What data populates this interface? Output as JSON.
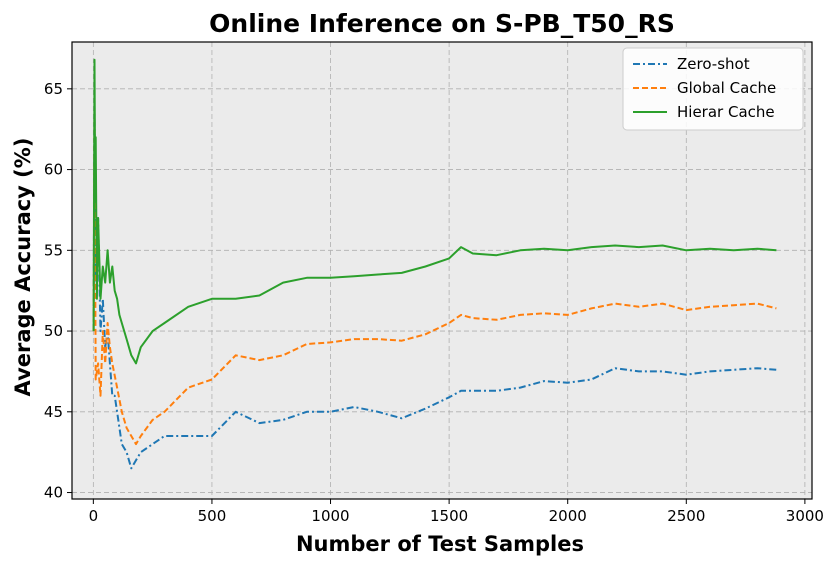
{
  "chart_data": {
    "type": "line",
    "title": "Online Inference on S-PB_T50_RS",
    "xlabel": "Number of Test Samples",
    "ylabel": "Average Accuracy (%)",
    "xlim": [
      -90,
      3030
    ],
    "ylim": [
      39.6,
      67.9
    ],
    "xticks": [
      0,
      500,
      1000,
      1500,
      2000,
      2500,
      3000
    ],
    "yticks": [
      40,
      45,
      50,
      55,
      60,
      65
    ],
    "grid": true,
    "legend": "top-right",
    "background": "#ebebeb",
    "series": [
      {
        "name": "Zero-shot",
        "color": "#1f77b4",
        "linestyle": "dashdot",
        "points": [
          [
            1,
            50
          ],
          [
            5,
            64
          ],
          [
            10,
            53
          ],
          [
            20,
            57
          ],
          [
            30,
            50
          ],
          [
            40,
            52
          ],
          [
            50,
            49
          ],
          [
            60,
            50
          ],
          [
            70,
            48
          ],
          [
            80,
            46
          ],
          [
            90,
            46
          ],
          [
            100,
            45
          ],
          [
            120,
            43
          ],
          [
            140,
            42.5
          ],
          [
            160,
            41.5
          ],
          [
            180,
            42
          ],
          [
            200,
            42.5
          ],
          [
            250,
            43
          ],
          [
            300,
            43.5
          ],
          [
            400,
            43.5
          ],
          [
            500,
            43.5
          ],
          [
            600,
            45
          ],
          [
            700,
            44.3
          ],
          [
            800,
            44.5
          ],
          [
            900,
            45
          ],
          [
            1000,
            45
          ],
          [
            1100,
            45.3
          ],
          [
            1200,
            45
          ],
          [
            1300,
            44.6
          ],
          [
            1400,
            45.2
          ],
          [
            1500,
            45.9
          ],
          [
            1550,
            46.3
          ],
          [
            1600,
            46.3
          ],
          [
            1700,
            46.3
          ],
          [
            1800,
            46.5
          ],
          [
            1900,
            46.9
          ],
          [
            2000,
            46.8
          ],
          [
            2100,
            47
          ],
          [
            2200,
            47.7
          ],
          [
            2300,
            47.5
          ],
          [
            2400,
            47.5
          ],
          [
            2500,
            47.3
          ],
          [
            2600,
            47.5
          ],
          [
            2700,
            47.6
          ],
          [
            2800,
            47.7
          ],
          [
            2880,
            47.6
          ]
        ]
      },
      {
        "name": "Global Cache",
        "color": "#ff7f0e",
        "linestyle": "dashed",
        "points": [
          [
            1,
            50
          ],
          [
            5,
            64
          ],
          [
            10,
            47
          ],
          [
            20,
            48
          ],
          [
            30,
            46
          ],
          [
            40,
            50
          ],
          [
            50,
            48
          ],
          [
            60,
            50.5
          ],
          [
            70,
            49
          ],
          [
            80,
            48
          ],
          [
            100,
            46.5
          ],
          [
            120,
            45
          ],
          [
            140,
            44
          ],
          [
            160,
            43.5
          ],
          [
            180,
            43
          ],
          [
            200,
            43.5
          ],
          [
            250,
            44.5
          ],
          [
            300,
            45
          ],
          [
            400,
            46.5
          ],
          [
            500,
            47
          ],
          [
            600,
            48.5
          ],
          [
            700,
            48.2
          ],
          [
            800,
            48.5
          ],
          [
            900,
            49.2
          ],
          [
            1000,
            49.3
          ],
          [
            1100,
            49.5
          ],
          [
            1200,
            49.5
          ],
          [
            1300,
            49.4
          ],
          [
            1400,
            49.8
          ],
          [
            1500,
            50.5
          ],
          [
            1550,
            51
          ],
          [
            1600,
            50.8
          ],
          [
            1700,
            50.7
          ],
          [
            1800,
            51
          ],
          [
            1900,
            51.1
          ],
          [
            2000,
            51
          ],
          [
            2100,
            51.4
          ],
          [
            2200,
            51.7
          ],
          [
            2300,
            51.5
          ],
          [
            2400,
            51.7
          ],
          [
            2500,
            51.3
          ],
          [
            2600,
            51.5
          ],
          [
            2700,
            51.6
          ],
          [
            2800,
            51.7
          ],
          [
            2880,
            51.4
          ]
        ]
      },
      {
        "name": "Hierar Cache",
        "color": "#2ca02c",
        "linestyle": "solid",
        "points": [
          [
            1,
            50
          ],
          [
            5,
            66.8
          ],
          [
            8,
            58
          ],
          [
            10,
            62
          ],
          [
            15,
            52
          ],
          [
            20,
            57
          ],
          [
            30,
            52
          ],
          [
            40,
            54
          ],
          [
            50,
            53
          ],
          [
            60,
            55
          ],
          [
            70,
            53
          ],
          [
            80,
            54
          ],
          [
            90,
            52.5
          ],
          [
            100,
            52
          ],
          [
            110,
            51
          ],
          [
            120,
            50.5
          ],
          [
            140,
            49.5
          ],
          [
            160,
            48.5
          ],
          [
            180,
            48
          ],
          [
            200,
            49
          ],
          [
            250,
            50
          ],
          [
            300,
            50.5
          ],
          [
            400,
            51.5
          ],
          [
            500,
            52
          ],
          [
            600,
            52
          ],
          [
            700,
            52.2
          ],
          [
            800,
            53
          ],
          [
            900,
            53.3
          ],
          [
            1000,
            53.3
          ],
          [
            1100,
            53.4
          ],
          [
            1200,
            53.5
          ],
          [
            1300,
            53.6
          ],
          [
            1400,
            54
          ],
          [
            1500,
            54.5
          ],
          [
            1550,
            55.2
          ],
          [
            1600,
            54.8
          ],
          [
            1700,
            54.7
          ],
          [
            1800,
            55
          ],
          [
            1900,
            55.1
          ],
          [
            2000,
            55
          ],
          [
            2100,
            55.2
          ],
          [
            2200,
            55.3
          ],
          [
            2300,
            55.2
          ],
          [
            2400,
            55.3
          ],
          [
            2500,
            55
          ],
          [
            2600,
            55.1
          ],
          [
            2700,
            55
          ],
          [
            2800,
            55.1
          ],
          [
            2880,
            55
          ]
        ]
      }
    ]
  }
}
